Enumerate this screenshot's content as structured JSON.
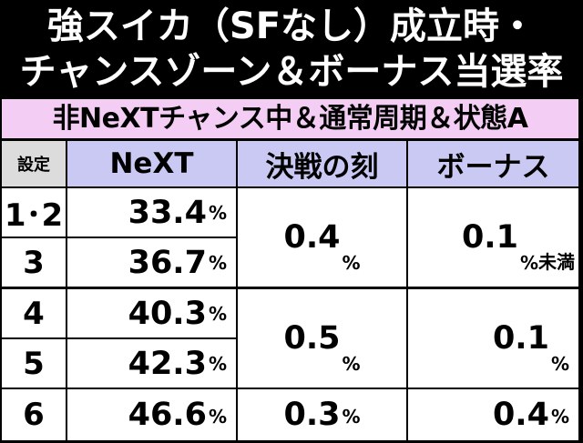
{
  "title": {
    "line1": "強スイカ（SFなし）成立時・",
    "line2": "チャンスゾーン＆ボーナス当選率"
  },
  "subtitle": "非NeXTチャンス中＆通常周期＆状態A",
  "table": {
    "headers": {
      "setting": "設定",
      "next": "NeXT",
      "kessen": "決戦の刻",
      "bonus": "ボーナス"
    },
    "settings": [
      "1･2",
      "3",
      "4",
      "5",
      "6"
    ],
    "next_values": [
      "33.4",
      "36.7",
      "40.3",
      "42.3",
      "46.6"
    ],
    "kessen_values": [
      "0.4",
      "0.5",
      "0.3"
    ],
    "bonus_values": [
      "0.1",
      "0.1",
      "0.4"
    ],
    "bonus_note": "未満",
    "percent_sign": "%"
  },
  "colors": {
    "header_bg": "#c9c9f4",
    "setting_header_bg": "#dcdcdc",
    "subtitle_bg": "#f4cdf4",
    "border": "#000000"
  }
}
